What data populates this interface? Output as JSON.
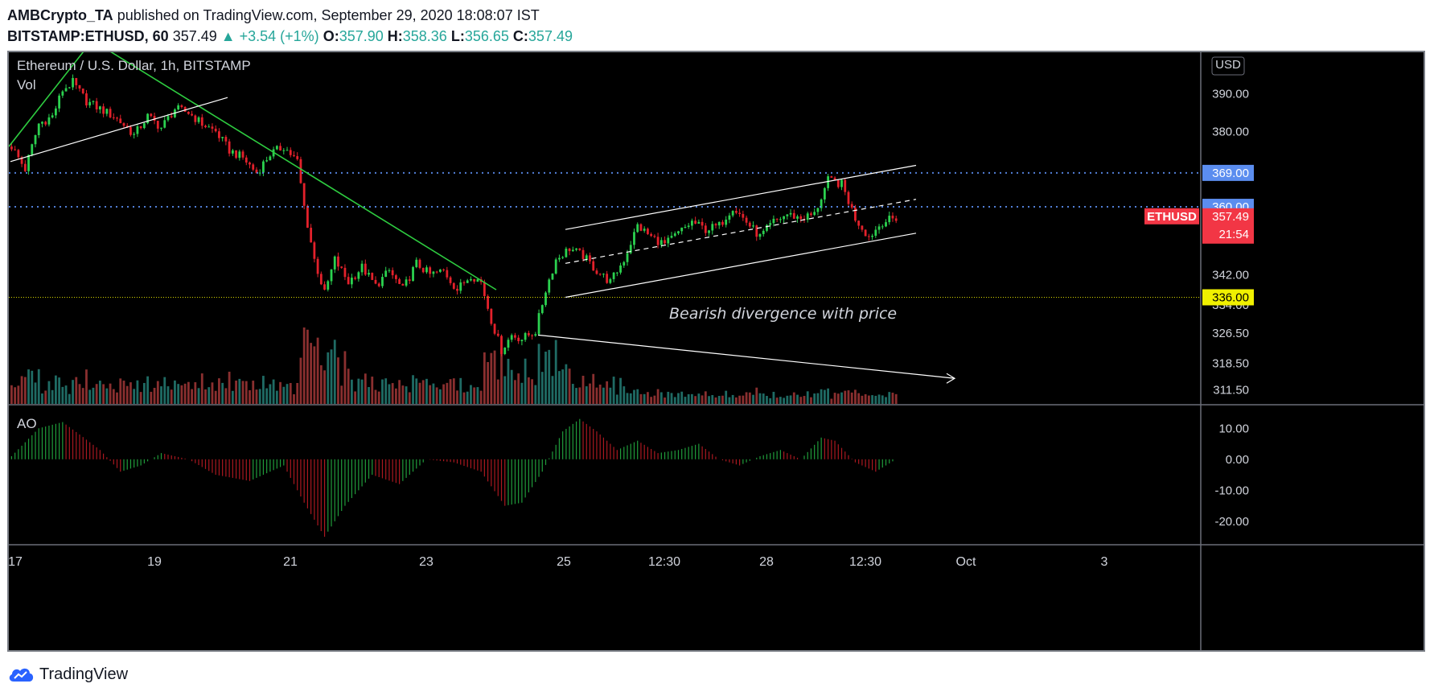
{
  "header": {
    "author": "AMBCrypto_TA",
    "published_text": "published on TradingView.com, September 29, 2020 18:08:07 IST",
    "symbol": "BITSTAMP:ETHUSD, 60",
    "last": "357.49",
    "change": "+3.54 (+1%)",
    "o_label": "O:",
    "o": "357.90",
    "h_label": "H:",
    "h": "358.36",
    "l_label": "L:",
    "l": "356.65",
    "c_label": "C:",
    "c": "357.49"
  },
  "footer": {
    "brand": "TradingView"
  },
  "colors": {
    "up": "#26a69a",
    "candle_up": "#2bd14f",
    "candle_down": "#e3212b",
    "level_blue": "#5b8def",
    "level_yellow": "#f0f000",
    "price_tag": "#f23645",
    "trend_green": "#2ecc40"
  },
  "chart_data": {
    "type": "candlestick",
    "title": "Ethereum / U.S. Dollar, 1h, BITSTAMP",
    "currency": "USD",
    "overlay_label": "Vol",
    "indicator_label": "AO",
    "x_ticks": [
      "17",
      "19",
      "21",
      "23",
      "25",
      "12:30",
      "28",
      "12:30",
      "Oct",
      "3"
    ],
    "y_ticks": [
      "390.00",
      "380.00",
      "369.00",
      "360.00",
      "342.00",
      "334.00",
      "326.50",
      "318.50",
      "311.50"
    ],
    "ao_ticks": [
      "10.00",
      "0.00",
      "-10.00",
      "-20.00"
    ],
    "ylim": [
      309,
      398
    ],
    "ao_ylim": [
      -26,
      15
    ],
    "levels": [
      {
        "value": 369.0,
        "label": "369.00",
        "style": "dotted",
        "color": "blue"
      },
      {
        "value": 360.0,
        "label": "360.00",
        "style": "dotted",
        "color": "blue"
      },
      {
        "value": 336.0,
        "label": "336.00",
        "style": "dotted",
        "color": "yellow"
      }
    ],
    "current_price": {
      "symbol": "ETHUSD",
      "value": 357.49,
      "label": "357.49",
      "countdown": "21:54"
    },
    "annotation": "Bearish divergence with price",
    "price_path": [
      [
        0,
        376
      ],
      [
        4,
        370
      ],
      [
        8,
        382
      ],
      [
        12,
        384
      ],
      [
        15,
        391
      ],
      [
        18,
        393
      ],
      [
        22,
        388
      ],
      [
        26,
        386
      ],
      [
        30,
        384
      ],
      [
        34,
        381
      ],
      [
        36,
        379
      ],
      [
        40,
        384
      ],
      [
        44,
        381
      ],
      [
        48,
        386
      ],
      [
        52,
        385
      ],
      [
        56,
        382
      ],
      [
        60,
        380
      ],
      [
        64,
        375
      ],
      [
        68,
        373
      ],
      [
        72,
        369
      ],
      [
        76,
        374
      ],
      [
        80,
        376
      ],
      [
        84,
        372
      ],
      [
        86,
        360
      ],
      [
        89,
        346
      ],
      [
        92,
        337
      ],
      [
        95,
        346
      ],
      [
        99,
        340
      ],
      [
        103,
        344
      ],
      [
        107,
        339
      ],
      [
        111,
        343
      ],
      [
        115,
        338
      ],
      [
        119,
        345
      ],
      [
        123,
        342
      ],
      [
        127,
        343
      ],
      [
        131,
        338
      ],
      [
        135,
        342
      ],
      [
        138,
        340
      ],
      [
        141,
        330
      ],
      [
        144,
        322
      ],
      [
        147,
        326
      ],
      [
        150,
        325
      ],
      [
        154,
        327
      ],
      [
        157,
        338
      ],
      [
        160,
        346
      ],
      [
        164,
        349
      ],
      [
        168,
        347
      ],
      [
        172,
        343
      ],
      [
        176,
        340
      ],
      [
        180,
        346
      ],
      [
        184,
        355
      ],
      [
        188,
        352
      ],
      [
        192,
        350
      ],
      [
        196,
        353
      ],
      [
        200,
        356
      ],
      [
        204,
        354
      ],
      [
        208,
        355
      ],
      [
        212,
        360
      ],
      [
        216,
        356
      ],
      [
        220,
        352
      ],
      [
        224,
        356
      ],
      [
        228,
        358
      ],
      [
        232,
        357
      ],
      [
        236,
        358
      ],
      [
        240,
        367
      ],
      [
        244,
        366
      ],
      [
        248,
        357
      ],
      [
        252,
        352
      ],
      [
        256,
        356
      ],
      [
        260,
        357
      ]
    ],
    "ao_path": [
      [
        0,
        1
      ],
      [
        8,
        10
      ],
      [
        15,
        12
      ],
      [
        20,
        8
      ],
      [
        26,
        3
      ],
      [
        32,
        -4
      ],
      [
        38,
        -2
      ],
      [
        44,
        2
      ],
      [
        52,
        0
      ],
      [
        60,
        -5
      ],
      [
        70,
        -7
      ],
      [
        80,
        -2
      ],
      [
        86,
        -14
      ],
      [
        92,
        -25
      ],
      [
        98,
        -15
      ],
      [
        106,
        -5
      ],
      [
        114,
        -8
      ],
      [
        122,
        0
      ],
      [
        130,
        -1
      ],
      [
        138,
        -4
      ],
      [
        145,
        -15
      ],
      [
        150,
        -14
      ],
      [
        156,
        -4
      ],
      [
        162,
        9
      ],
      [
        167,
        13
      ],
      [
        172,
        9
      ],
      [
        178,
        3
      ],
      [
        184,
        6
      ],
      [
        190,
        2
      ],
      [
        196,
        3
      ],
      [
        202,
        5
      ],
      [
        208,
        0
      ],
      [
        214,
        -2
      ],
      [
        220,
        1
      ],
      [
        226,
        3
      ],
      [
        232,
        0
      ],
      [
        238,
        7
      ],
      [
        242,
        6
      ],
      [
        248,
        -1
      ],
      [
        254,
        -4
      ],
      [
        260,
        0
      ]
    ]
  }
}
